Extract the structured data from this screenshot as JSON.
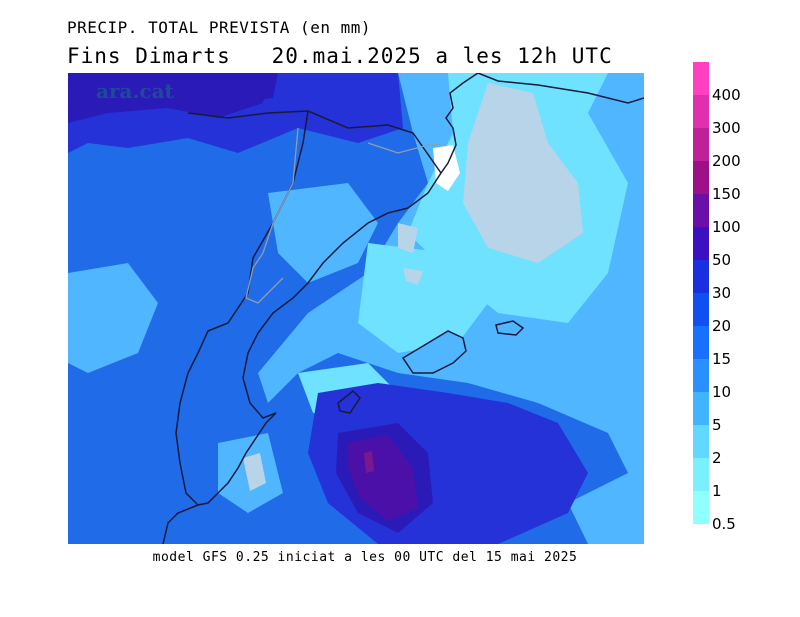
{
  "title_line1": "PRECIP. TOTAL PREVISTA (en mm)",
  "title_line2": "Fins Dimarts   20.mai.2025 a les 12h UTC",
  "watermark": "ara.cat",
  "footer": "model GFS 0.25 iniciat a les 00 UTC del 15 mai 2025",
  "legend": {
    "labels": [
      "400",
      "300",
      "200",
      "150",
      "100",
      "50",
      "30",
      "20",
      "15",
      "10",
      "5",
      "2",
      "1",
      "0.5"
    ],
    "colors": [
      "#ff40c0",
      "#e030b0",
      "#c02098",
      "#9e1088",
      "#6a10a8",
      "#3a10c0",
      "#1a30e0",
      "#1050f0",
      "#1870ff",
      "#2a90ff",
      "#40b4ff",
      "#60d8ff",
      "#7af0ff",
      "#90ffff"
    ]
  },
  "map_colors": {
    "background": "#1f6be8",
    "light_blue": "#4fb6ff",
    "cyan": "#6ee2ff",
    "gray": "#b8d4e8",
    "white": "#ffffff",
    "dark_blue": "#2432d8",
    "navy": "#2a1bb8",
    "purple": "#4a10a8",
    "magenta": "#7a1890",
    "coast_line": "#1a1a3a",
    "border_line": "#8f9db0"
  }
}
